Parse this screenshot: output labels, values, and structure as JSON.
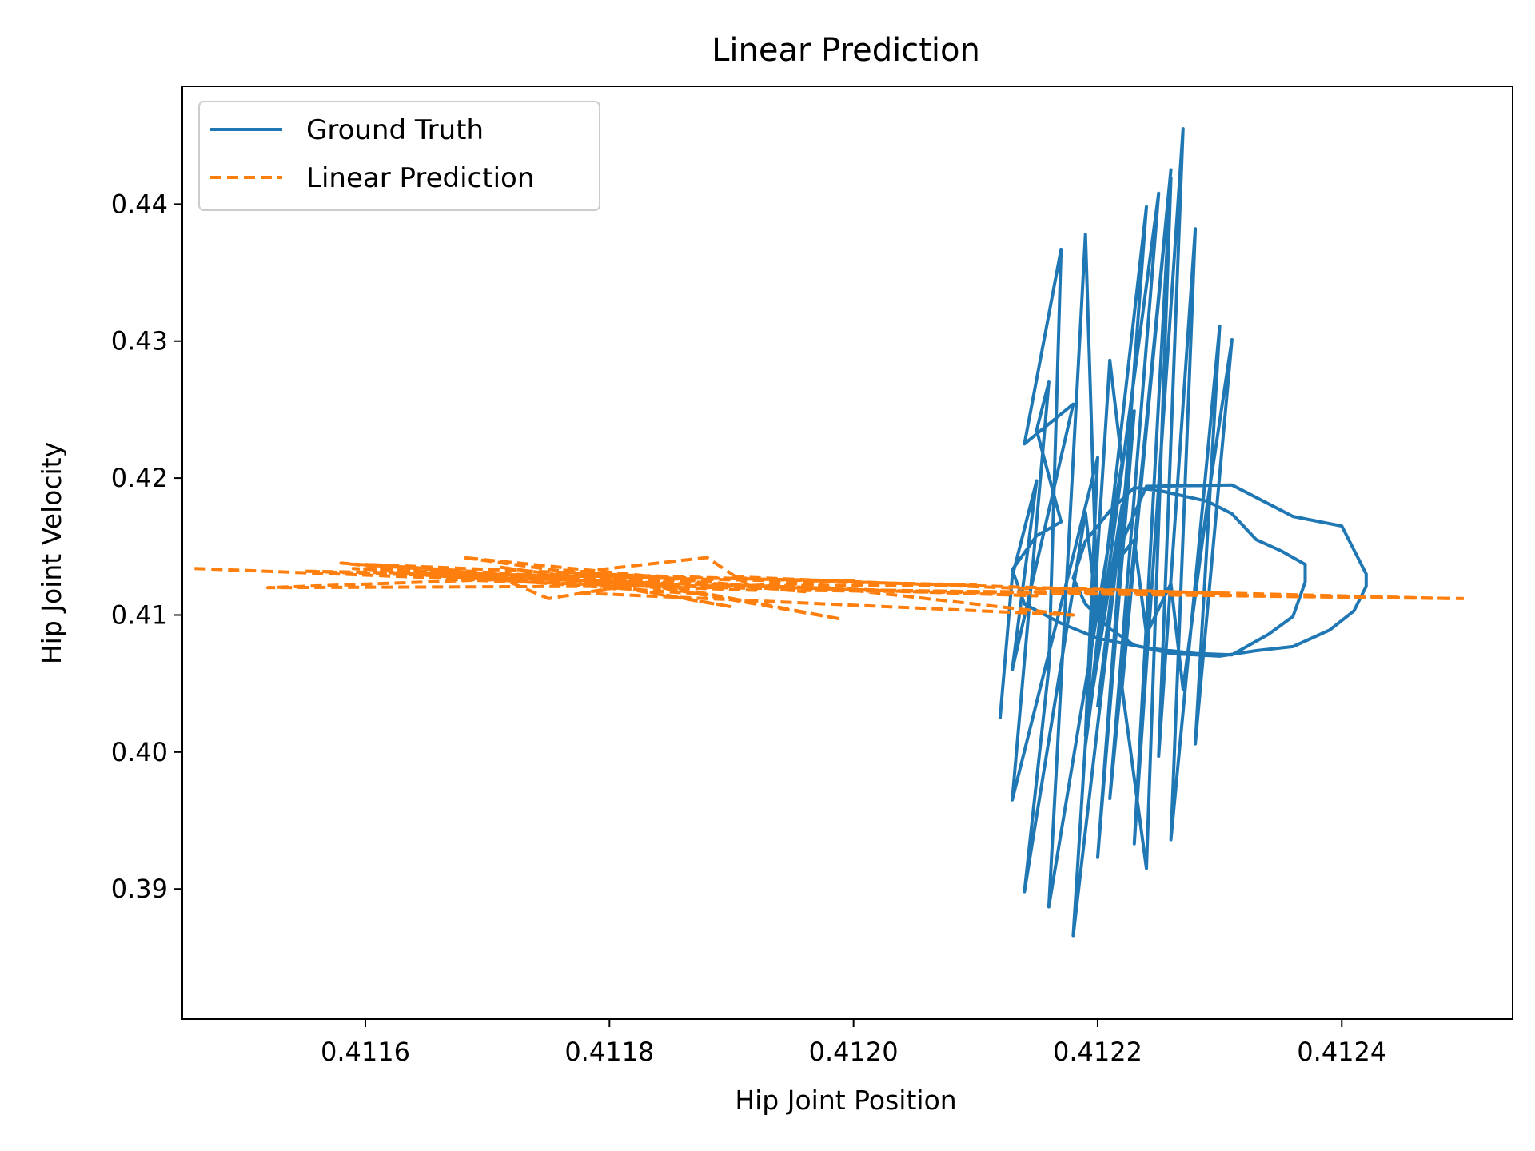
{
  "chart_data": {
    "type": "line",
    "title": "Linear Prediction",
    "xlabel": "Hip Joint Position",
    "ylabel": "Hip Joint Velocity",
    "xlim": [
      0.41145,
      0.41254
    ],
    "ylim": [
      0.3805,
      0.4486
    ],
    "xticks": [
      0.4116,
      0.4118,
      0.412,
      0.4122,
      0.4124
    ],
    "xtick_labels": [
      "0.4116",
      "0.4118",
      "0.4120",
      "0.4122",
      "0.4124"
    ],
    "yticks": [
      0.39,
      0.4,
      0.41,
      0.42,
      0.43,
      0.44
    ],
    "ytick_labels": [
      "0.39",
      "0.40",
      "0.41",
      "0.42",
      "0.43",
      "0.44"
    ],
    "grid": false,
    "legend_position": "upper-left",
    "series": [
      {
        "name": "Ground Truth",
        "color": "#1f77b4",
        "style": "solid",
        "points": [
          [
            0.41212,
            0.4024
          ],
          [
            0.41213,
            0.4128
          ],
          [
            0.41215,
            0.4198
          ],
          [
            0.41213,
            0.406
          ],
          [
            0.41218,
            0.4254
          ],
          [
            0.41214,
            0.4225
          ],
          [
            0.41217,
            0.4367
          ],
          [
            0.41216,
            0.4062
          ],
          [
            0.41214,
            0.3898
          ],
          [
            0.41219,
            0.4175
          ],
          [
            0.4122,
            0.4096
          ],
          [
            0.41219,
            0.4378
          ],
          [
            0.41216,
            0.3887
          ],
          [
            0.41222,
            0.4211
          ],
          [
            0.41221,
            0.4286
          ],
          [
            0.41218,
            0.3866
          ],
          [
            0.41223,
            0.4249
          ],
          [
            0.4122,
            0.3923
          ],
          [
            0.41224,
            0.4398
          ],
          [
            0.41219,
            0.4005
          ],
          [
            0.41225,
            0.4408
          ],
          [
            0.41221,
            0.3966
          ],
          [
            0.41226,
            0.4425
          ],
          [
            0.41222,
            0.4047
          ],
          [
            0.41224,
            0.3915
          ],
          [
            0.41226,
            0.4419
          ],
          [
            0.41223,
            0.3933
          ],
          [
            0.41227,
            0.4455
          ],
          [
            0.41225,
            0.3997
          ],
          [
            0.41228,
            0.4382
          ],
          [
            0.41226,
            0.3936
          ],
          [
            0.4123,
            0.4311
          ],
          [
            0.41228,
            0.4006
          ],
          [
            0.41231,
            0.4301
          ],
          [
            0.41229,
            0.4182
          ],
          [
            0.41227,
            0.4046
          ],
          [
            0.41226,
            0.4123
          ],
          [
            0.41224,
            0.4086
          ],
          [
            0.41223,
            0.4155
          ],
          [
            0.41221,
            0.4133
          ],
          [
            0.41224,
            0.4194
          ],
          [
            0.41231,
            0.4195
          ],
          [
            0.41236,
            0.4172
          ],
          [
            0.4124,
            0.4165
          ],
          [
            0.41242,
            0.413
          ],
          [
            0.41242,
            0.4121
          ],
          [
            0.41241,
            0.4103
          ],
          [
            0.41239,
            0.4089
          ],
          [
            0.41236,
            0.4077
          ],
          [
            0.41233,
            0.4074
          ],
          [
            0.4123,
            0.407
          ],
          [
            0.41226,
            0.4072
          ],
          [
            0.41223,
            0.4078
          ],
          [
            0.41221,
            0.409
          ],
          [
            0.41219,
            0.4108
          ],
          [
            0.41218,
            0.4127
          ],
          [
            0.41219,
            0.4154
          ],
          [
            0.41221,
            0.4176
          ],
          [
            0.41223,
            0.4193
          ],
          [
            0.41225,
            0.4191
          ],
          [
            0.41229,
            0.4183
          ],
          [
            0.41231,
            0.4174
          ],
          [
            0.41233,
            0.4155
          ],
          [
            0.41235,
            0.4147
          ],
          [
            0.41237,
            0.4137
          ],
          [
            0.41237,
            0.4124
          ],
          [
            0.41236,
            0.4099
          ],
          [
            0.41234,
            0.4086
          ],
          [
            0.41231,
            0.4071
          ],
          [
            0.41228,
            0.4072
          ],
          [
            0.41224,
            0.4076
          ],
          [
            0.4122,
            0.4083
          ],
          [
            0.41217,
            0.4094
          ],
          [
            0.41214,
            0.4108
          ],
          [
            0.41213,
            0.4133
          ],
          [
            0.41215,
            0.4158
          ],
          [
            0.41217,
            0.4168
          ],
          [
            0.41215,
            0.4235
          ],
          [
            0.41216,
            0.427
          ],
          [
            0.41213,
            0.3965
          ],
          [
            0.4122,
            0.4215
          ],
          [
            0.41219,
            0.4012
          ],
          [
            0.41222,
            0.418
          ],
          [
            0.4122,
            0.4033
          ]
        ]
      },
      {
        "name": "Linear Prediction",
        "color": "#ff7f0e",
        "style": "dashed",
        "points": [
          [
            0.41146,
            0.4134
          ],
          [
            0.41172,
            0.4125
          ],
          [
            0.41158,
            0.4138
          ],
          [
            0.41186,
            0.412
          ],
          [
            0.41168,
            0.4142
          ],
          [
            0.41196,
            0.4117
          ],
          [
            0.41176,
            0.4133
          ],
          [
            0.41199,
            0.4097
          ],
          [
            0.4118,
            0.4129
          ],
          [
            0.41152,
            0.412
          ],
          [
            0.4121,
            0.4122
          ],
          [
            0.41162,
            0.4131
          ],
          [
            0.41188,
            0.4115
          ],
          [
            0.41171,
            0.4135
          ],
          [
            0.4119,
            0.4106
          ],
          [
            0.4118,
            0.4122
          ],
          [
            0.41159,
            0.4134
          ],
          [
            0.41174,
            0.4128
          ],
          [
            0.41188,
            0.4142
          ],
          [
            0.41192,
            0.4118
          ],
          [
            0.41167,
            0.4126
          ],
          [
            0.41184,
            0.4125
          ],
          [
            0.41175,
            0.4112
          ],
          [
            0.4117,
            0.4131
          ],
          [
            0.41188,
            0.412
          ],
          [
            0.412,
            0.4125
          ],
          [
            0.41155,
            0.4132
          ],
          [
            0.41215,
            0.4114
          ],
          [
            0.41184,
            0.4124
          ],
          [
            0.41178,
            0.4116
          ],
          [
            0.41218,
            0.41
          ],
          [
            0.4119,
            0.4128
          ],
          [
            0.41212,
            0.412
          ],
          [
            0.41249,
            0.4112
          ],
          [
            0.41196,
            0.4118
          ],
          [
            0.4123,
            0.4116
          ],
          [
            0.41182,
            0.4129
          ],
          [
            0.4116,
            0.4137
          ],
          [
            0.41189,
            0.412
          ],
          [
            0.41225,
            0.4115
          ],
          [
            0.4125,
            0.4112
          ]
        ]
      }
    ]
  }
}
